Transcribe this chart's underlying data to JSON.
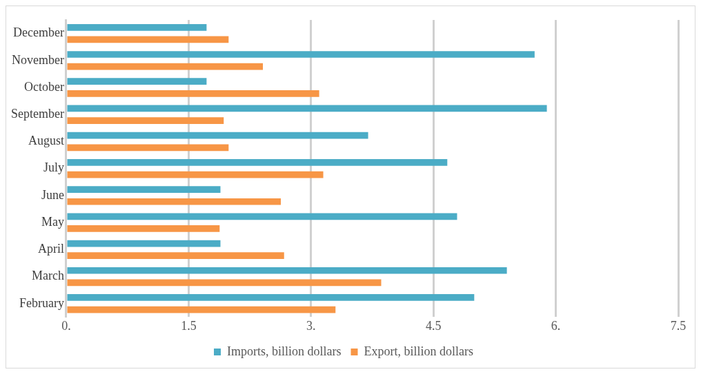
{
  "chart_data": {
    "type": "bar",
    "orientation": "horizontal",
    "categories": [
      "December",
      "November",
      "October",
      "September",
      "August",
      "July",
      "June",
      "May",
      "April",
      "March",
      "February"
    ],
    "series": [
      {
        "name": "Imports, billion dollars",
        "color": "#4bacc6",
        "values": [
          1.72,
          5.74,
          1.72,
          5.89,
          3.7,
          4.67,
          1.89,
          4.79,
          1.89,
          5.4,
          5.0
        ]
      },
      {
        "name": "Export, billion dollars",
        "color": "#f79646",
        "values": [
          1.99,
          2.41,
          3.1,
          1.93,
          1.99,
          3.15,
          2.63,
          1.88,
          2.67,
          3.86,
          3.3
        ]
      }
    ],
    "xlim": [
      0,
      7.5
    ],
    "xticks": [
      {
        "value": 0,
        "label": "0."
      },
      1.5,
      {
        "value": 3,
        "label": "3."
      },
      4.5,
      {
        "value": 6,
        "label": "6."
      },
      7.5
    ],
    "grid": "x",
    "legend": "bottom"
  }
}
